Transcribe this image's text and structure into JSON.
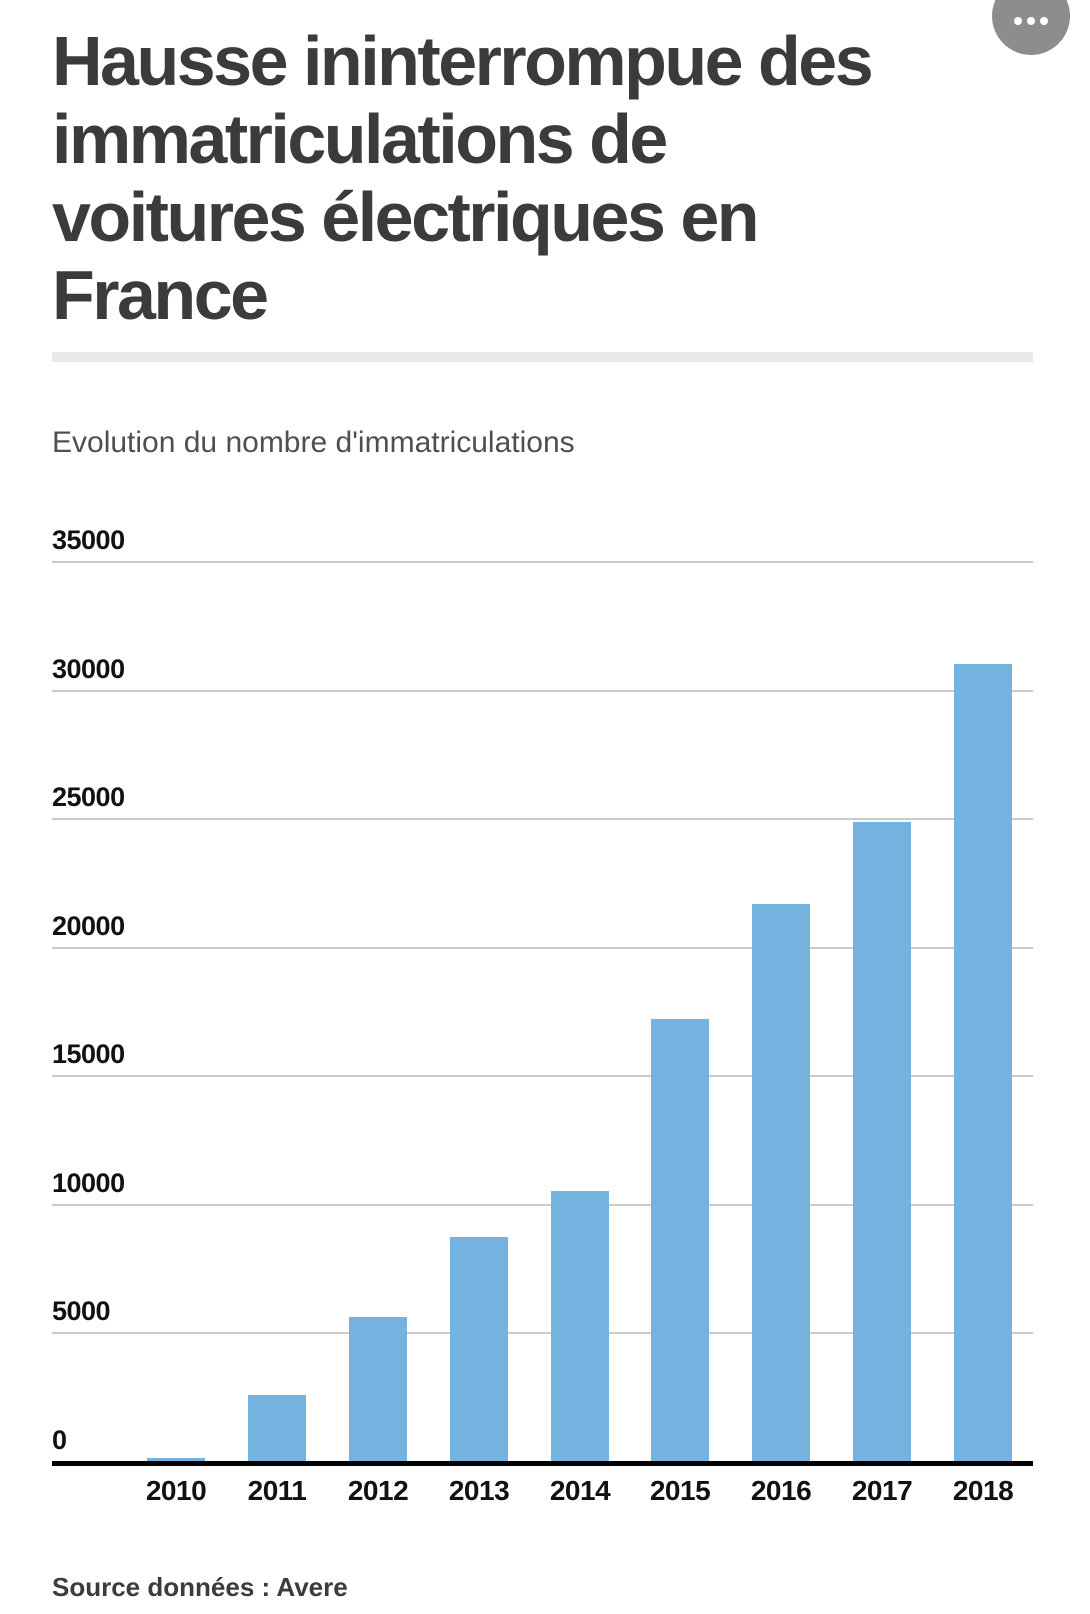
{
  "header": {
    "title": "Hausse ininterrompue des immatriculations de voitures électriques en France",
    "title_lines": [
      "Hausse ininterrompue des",
      "immatriculations de",
      "voitures électriques en",
      "France"
    ]
  },
  "menu": {
    "icon": "ellipsis-icon"
  },
  "chart_data": {
    "type": "bar",
    "title": "Evolution du nombre d'immatriculations",
    "categories": [
      "2010",
      "2011",
      "2012",
      "2013",
      "2014",
      "2015",
      "2016",
      "2017",
      "2018"
    ],
    "values": [
      184,
      2630,
      5663,
      8779,
      10560,
      17269,
      21751,
      24910,
      31059
    ],
    "xlabel": "",
    "ylabel": "",
    "ylim": [
      0,
      35000
    ],
    "yticks": [
      0,
      5000,
      10000,
      15000,
      20000,
      25000,
      30000,
      35000
    ],
    "grid": true,
    "legend_position": "none",
    "bar_color": "#74b3e0"
  },
  "footer": {
    "source": "Source données : Avere"
  },
  "colors": {
    "bar": "#74b3e0",
    "gridline": "#cbcbcb",
    "axis_line": "#000000",
    "title_text": "#3b3b3b",
    "subtitle_text": "#4f4f4f",
    "tick_text": "#111111",
    "source_text": "#3c3c3c",
    "divider": "#e8e8e8",
    "menu_button_bg": "#8d8d8d",
    "background": "#ffffff"
  }
}
